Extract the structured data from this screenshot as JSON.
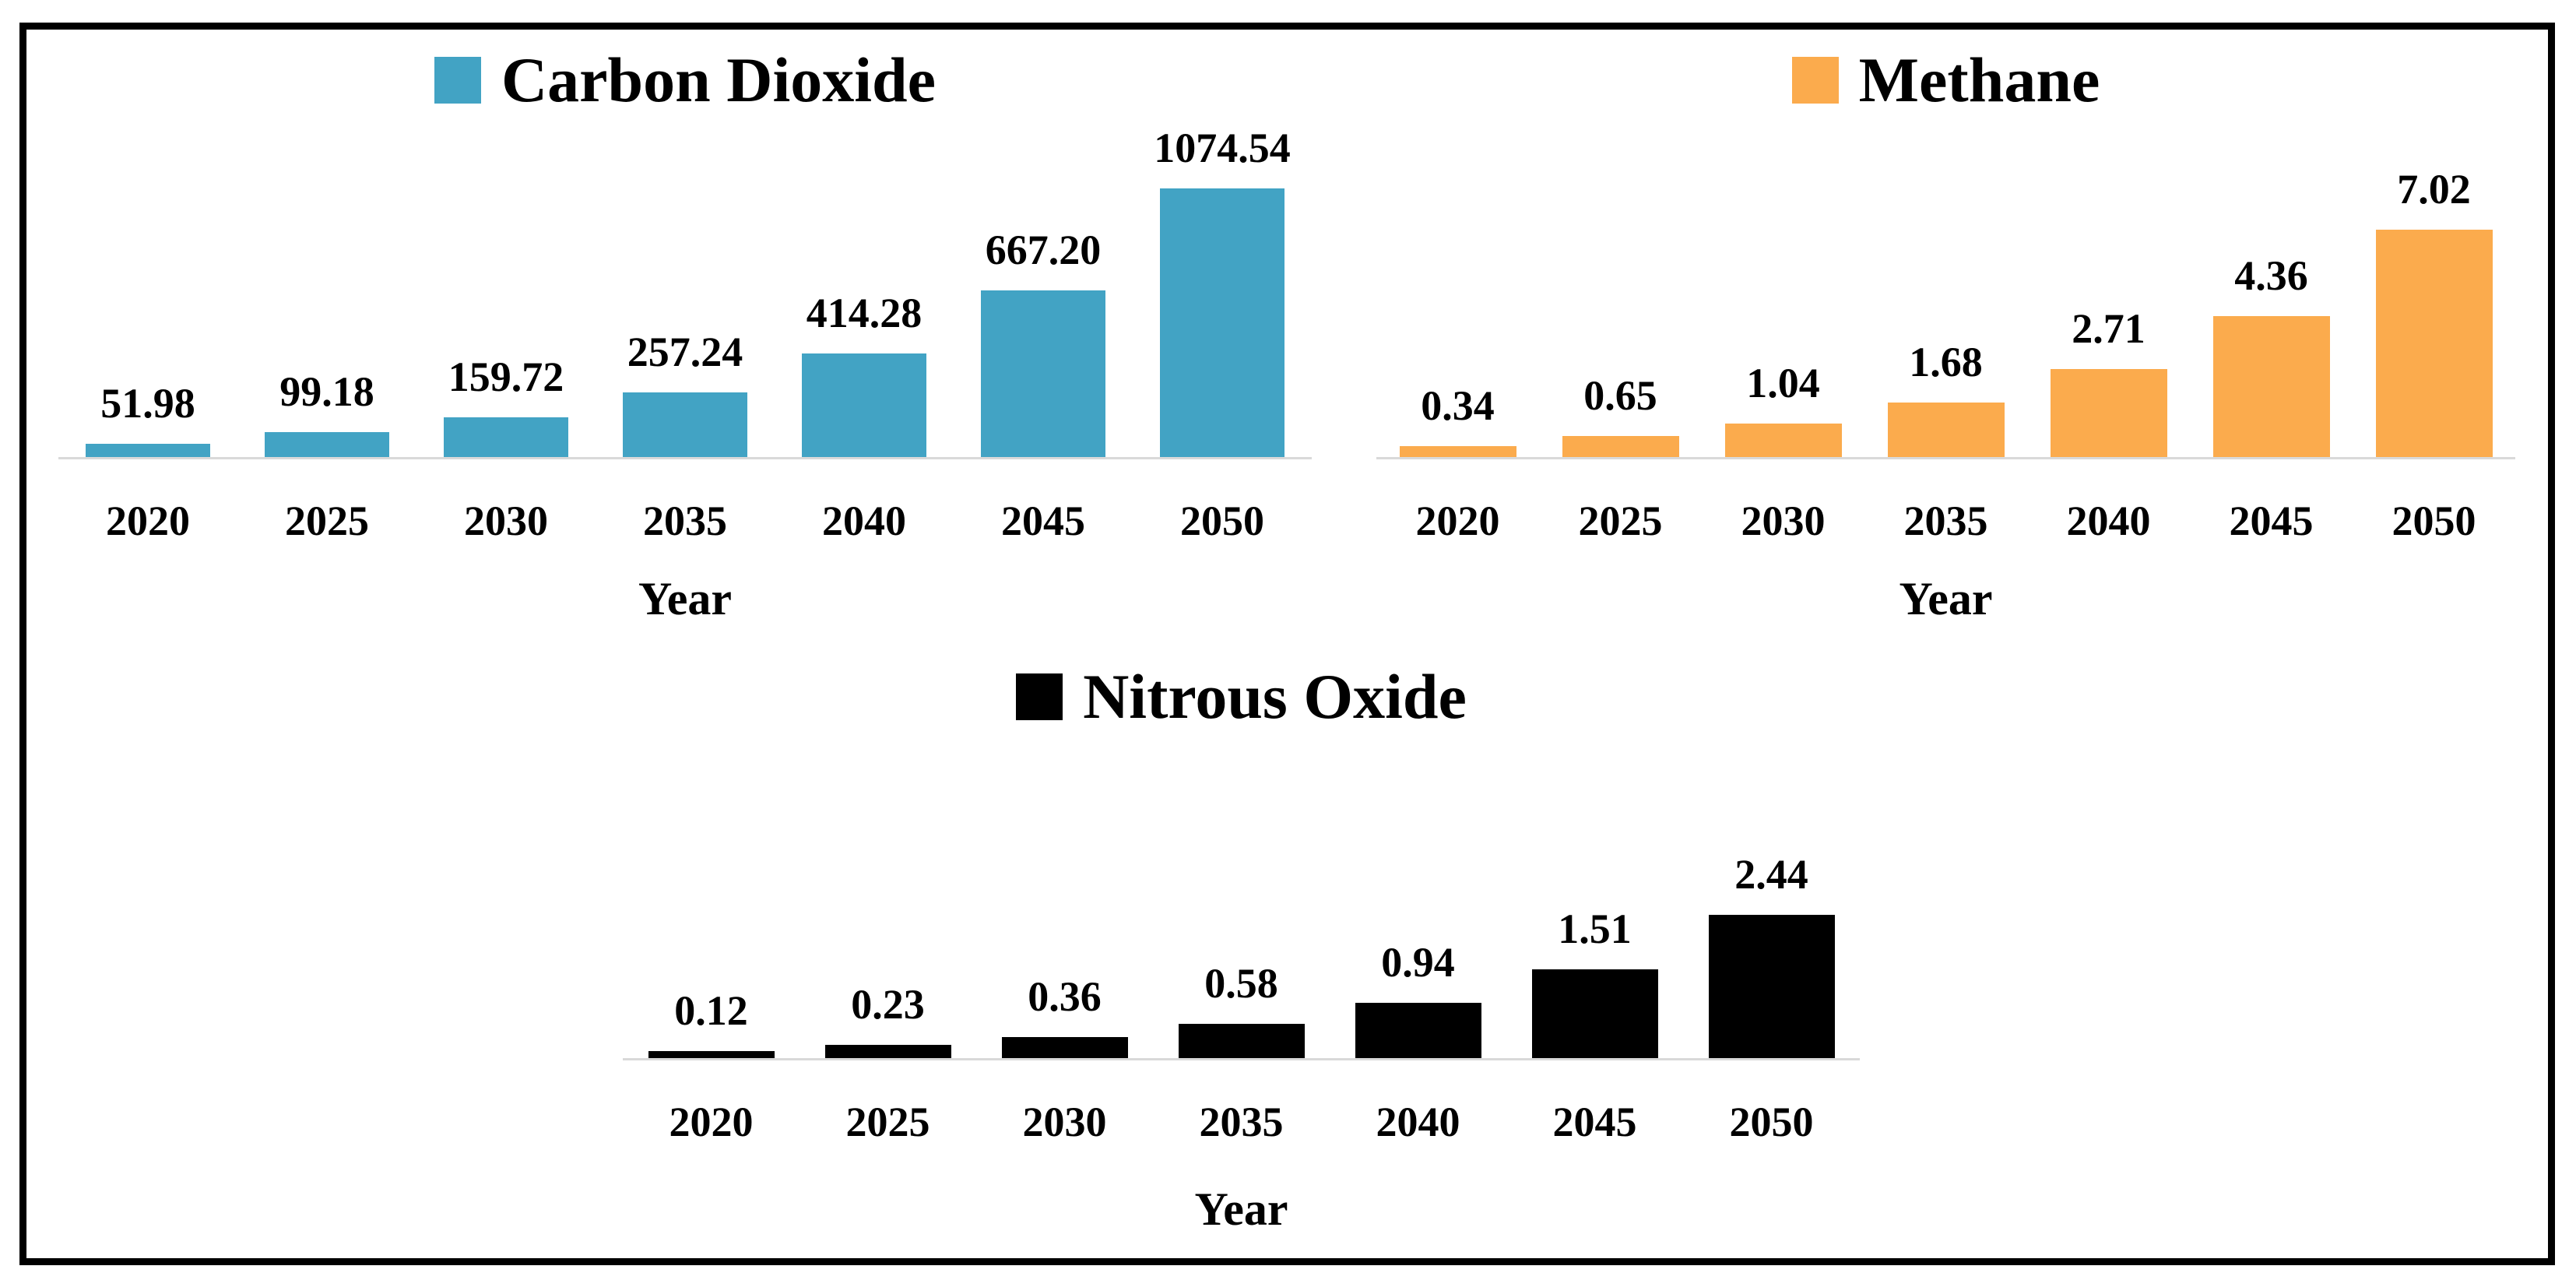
{
  "figure": {
    "background_color": "#ffffff",
    "border_color": "#000000",
    "axis_line_color": "#d9d9d9"
  },
  "chart_data": [
    {
      "type": "bar",
      "legend": "Carbon Dioxide",
      "legend_position": "top",
      "bar_color": "#42a3c4",
      "categories": [
        "2020",
        "2025",
        "2030",
        "2035",
        "2040",
        "2045",
        "2050"
      ],
      "values": [
        51.98,
        99.18,
        159.72,
        257.24,
        414.28,
        667.2,
        1074.54
      ],
      "value_labels": [
        "51.98",
        "99.18",
        "159.72",
        "257.24",
        "414.28",
        "667.20",
        "1074.54"
      ],
      "xlabel": "Year",
      "ylabel": "",
      "ylim": [
        0,
        1074.54
      ],
      "grid": false,
      "y_axis_visible": false
    },
    {
      "type": "bar",
      "legend": "Methane",
      "legend_position": "top",
      "bar_color": "#fbab4d",
      "categories": [
        "2020",
        "2025",
        "2030",
        "2035",
        "2040",
        "2045",
        "2050"
      ],
      "values": [
        0.34,
        0.65,
        1.04,
        1.68,
        2.71,
        4.36,
        7.02
      ],
      "value_labels": [
        "0.34",
        "0.65",
        "1.04",
        "1.68",
        "2.71",
        "4.36",
        "7.02"
      ],
      "xlabel": "Year",
      "ylabel": "",
      "ylim": [
        0,
        7.02
      ],
      "grid": false,
      "y_axis_visible": false
    },
    {
      "type": "bar",
      "legend": "Nitrous Oxide",
      "legend_position": "top",
      "bar_color": "#000000",
      "categories": [
        "2020",
        "2025",
        "2030",
        "2035",
        "2040",
        "2045",
        "2050"
      ],
      "values": [
        0.12,
        0.23,
        0.36,
        0.58,
        0.94,
        1.51,
        2.44
      ],
      "value_labels": [
        "0.12",
        "0.23",
        "0.36",
        "0.58",
        "0.94",
        "1.51",
        "2.44"
      ],
      "xlabel": "Year",
      "ylabel": "",
      "ylim": [
        0,
        2.44
      ],
      "grid": false,
      "y_axis_visible": false
    }
  ]
}
